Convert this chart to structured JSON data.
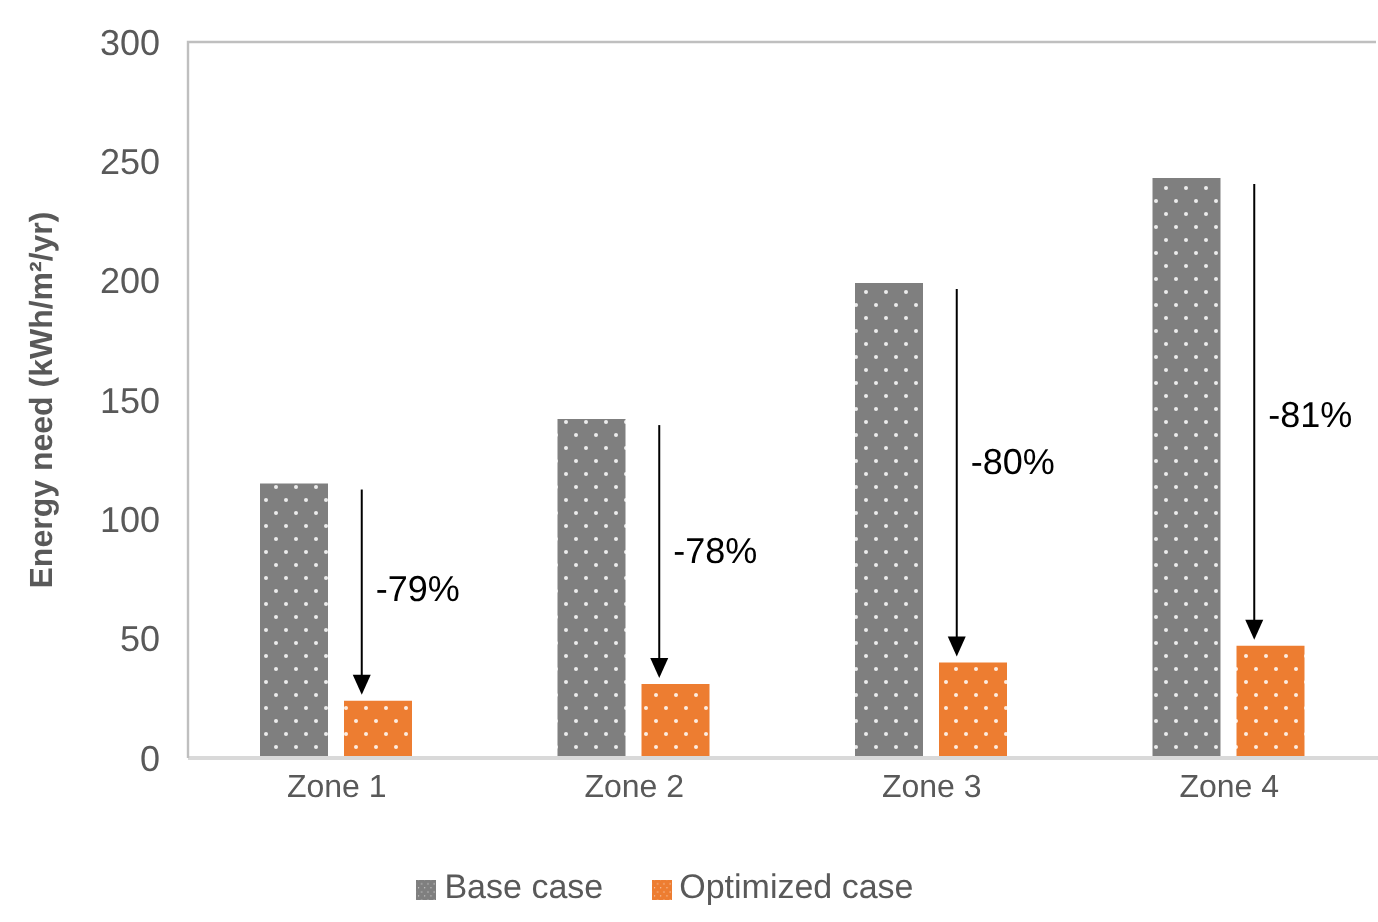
{
  "chart_data": {
    "type": "bar",
    "ylabel": "Energy need (kWh/m²/yr)",
    "categories": [
      "Zone 1",
      "Zone 2",
      "Zone 3",
      "Zone 4"
    ],
    "series": [
      {
        "name": "Base case",
        "color": "#7f7f7f",
        "values": [
          115,
          142,
          199,
          243
        ]
      },
      {
        "name": "Optimized case",
        "color": "#ed7d31",
        "values": [
          24,
          31,
          40,
          47
        ]
      }
    ],
    "ylim": [
      0,
      300
    ],
    "yticks": [
      0,
      50,
      100,
      150,
      200,
      250,
      300
    ],
    "grid": false,
    "legend": "bottom",
    "annotations": [
      {
        "text": "-79%",
        "x": "Zone 1",
        "y": 70
      },
      {
        "text": "-78%",
        "x": "Zone 2",
        "y": 86
      },
      {
        "text": "-80%",
        "x": "Zone 3",
        "y": 123
      },
      {
        "text": "-81%",
        "x": "Zone 4",
        "y": 143
      }
    ]
  }
}
